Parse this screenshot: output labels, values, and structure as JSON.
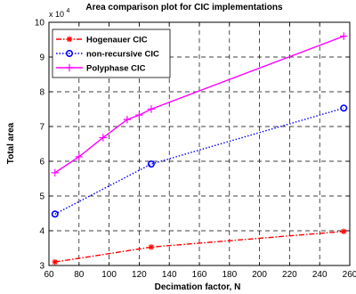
{
  "chart_data": {
    "type": "line",
    "title": "Area comparison plot for CIC implementations",
    "xlabel": "Decimation factor, N",
    "ylabel": "Total area",
    "y_exponent_label": "x 10",
    "y_exponent_power": "4",
    "xlim": [
      60,
      260
    ],
    "ylim": [
      3,
      10
    ],
    "x_ticks": [
      "60",
      "80",
      "100",
      "120",
      "140",
      "160",
      "180",
      "200",
      "220",
      "240",
      "260"
    ],
    "y_ticks": [
      "3",
      "4",
      "5",
      "6",
      "7",
      "8",
      "9",
      "10"
    ],
    "grid": true,
    "legend_position": "top-left",
    "series": [
      {
        "name": "Hogenauer CIC",
        "color": "#ff0000",
        "line_style": "dash-dot",
        "marker": "asterisk",
        "x": [
          64,
          128,
          256
        ],
        "y": [
          3.1,
          3.53,
          3.98
        ]
      },
      {
        "name": "non-recursive CIC",
        "color": "#0000ff",
        "line_style": "dotted",
        "marker": "circle",
        "x": [
          64,
          128,
          256
        ],
        "y": [
          4.48,
          5.92,
          7.53
        ]
      },
      {
        "name": "Polyphase CIC",
        "color": "#ff00ff",
        "line_style": "solid",
        "marker": "plus",
        "x": [
          64,
          80,
          96,
          112,
          120,
          128,
          256
        ],
        "y": [
          5.67,
          6.13,
          6.68,
          7.2,
          7.33,
          7.5,
          9.6
        ]
      }
    ]
  }
}
